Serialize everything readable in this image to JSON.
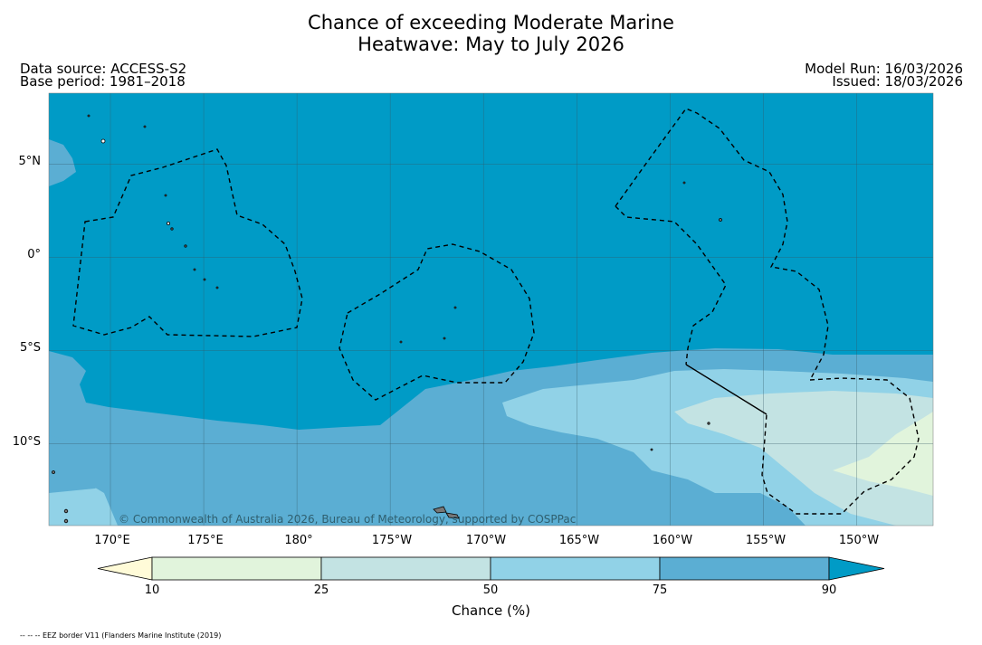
{
  "title": {
    "line1": "Chance of exceeding Moderate Marine",
    "line2": "Heatwave: May to July 2026"
  },
  "info": {
    "data_source": "Data source: ACCESS-S2",
    "base_period": "Base period: 1981–2018",
    "model_run": "Model Run: 16/03/2026",
    "issued": "Issued: 18/03/2026"
  },
  "map": {
    "attribution": "© Commonwealth of Australia 2026, Bureau of Meteorology, supported by COSPPac",
    "lat_labels": [
      "5°N",
      "0°",
      "5°S",
      "10°S"
    ],
    "lon_labels": [
      "170°E",
      "175°E",
      "180°",
      "175°W",
      "170°W",
      "165°W",
      "160°W",
      "155°W",
      "150°W"
    ],
    "extent": {
      "lon_min": 166.7,
      "lon_max": 214.1,
      "lat_min": -14.4,
      "lat_max": 8.8
    },
    "grid_lons": [
      170,
      175,
      180,
      185,
      190,
      195,
      200,
      205,
      210
    ],
    "grid_lats": [
      5,
      0,
      -5,
      -10
    ]
  },
  "colorbar": {
    "title": "Chance (%)",
    "ticks": [
      "10",
      "25",
      "50",
      "75",
      "90"
    ],
    "bins": [
      {
        "range": "<10",
        "color": "#fffbd8"
      },
      {
        "range": "10-25",
        "color": "#e1f4dc"
      },
      {
        "range": "25-50",
        "color": "#c3e3e3"
      },
      {
        "range": "50-75",
        "color": "#91d2e7"
      },
      {
        "range": "75-90",
        "color": "#5baed3"
      },
      {
        "range": ">90",
        "color": "#009bc6"
      }
    ]
  },
  "footnote": "-- -- -- EEZ border V11 (Flanders Marine Institute (2019)"
}
